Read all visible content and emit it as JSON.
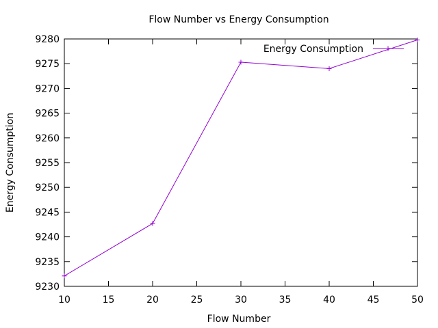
{
  "chart_data": {
    "type": "line",
    "title": "Flow Number vs Energy Consumption",
    "xlabel": "Flow Number",
    "ylabel": "Energy Consumption",
    "xlim": [
      10,
      50
    ],
    "ylim": [
      9230,
      9280
    ],
    "xticks": [
      10,
      15,
      20,
      25,
      30,
      35,
      40,
      45,
      50
    ],
    "yticks": [
      9230,
      9235,
      9240,
      9245,
      9250,
      9255,
      9260,
      9265,
      9270,
      9275,
      9280
    ],
    "grid": false,
    "legend_position": "top-right",
    "series": [
      {
        "name": "Energy Consumption",
        "color": "#9400d3",
        "marker": "plus",
        "x": [
          10,
          20,
          30,
          40,
          50
        ],
        "y": [
          9232.1,
          9242.7,
          9275.3,
          9274.0,
          9279.8
        ]
      }
    ]
  }
}
